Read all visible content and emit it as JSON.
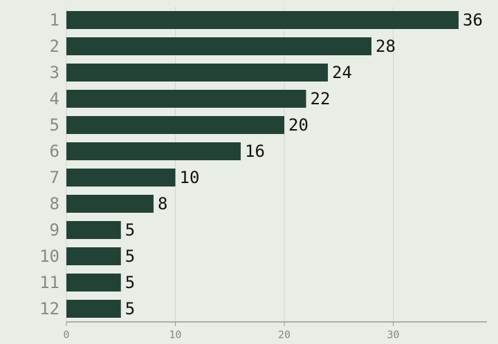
{
  "chart_data": {
    "type": "bar",
    "orientation": "horizontal",
    "categories": [
      "1",
      "2",
      "3",
      "4",
      "5",
      "6",
      "7",
      "8",
      "9",
      "10",
      "11",
      "12"
    ],
    "values": [
      36,
      28,
      24,
      22,
      20,
      16,
      10,
      8,
      5,
      5,
      5,
      5
    ],
    "color": "#234236",
    "xlim": [
      0,
      38.6
    ],
    "xticks": [
      0,
      10,
      20,
      30
    ],
    "grid": true
  }
}
